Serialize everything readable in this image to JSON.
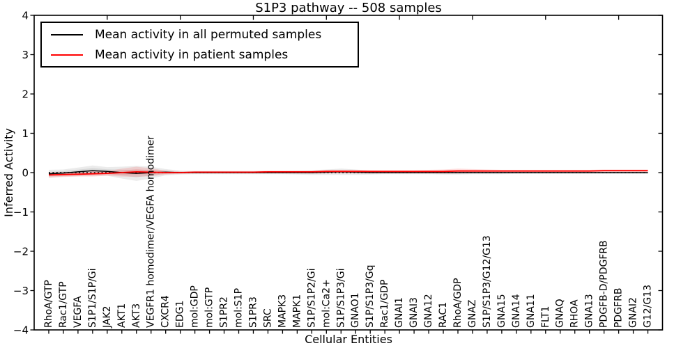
{
  "figure": {
    "title": "S1P3 pathway -- 508 samples",
    "xlabel": "Cellular Entities",
    "ylabel": "Inferred Activity",
    "legend": {
      "entries": [
        {
          "label": "Mean activity in all permuted samples",
          "color": "#000000"
        },
        {
          "label": "Mean activity in patient samples",
          "color": "#ff0000"
        }
      ]
    },
    "colors": {
      "background": "#ffffff",
      "axis": "#000000",
      "permuted_line": "#000000",
      "patient_line": "#ff0000",
      "permuted_band": "rgba(110,110,110,0.14)",
      "patient_band": "rgba(255,30,30,0.14)",
      "zero_line": "#000000"
    }
  },
  "chart_data": {
    "type": "line",
    "title": "S1P3 pathway -- 508 samples",
    "xlabel": "Cellular Entities",
    "ylabel": "Inferred Activity",
    "ylim": [
      -4,
      4
    ],
    "ytick_values": [
      4,
      3,
      2,
      1,
      0,
      -1,
      -2,
      -3,
      -4
    ],
    "ytick_labels": [
      "4",
      "3",
      "2",
      "1",
      "0",
      "−1",
      "−2",
      "−3",
      "−4"
    ],
    "grid": false,
    "legend_position": "upper left",
    "x_major_tick_categories": [
      4,
      9,
      14,
      19,
      24,
      29,
      34,
      39
    ],
    "zero_line": 0,
    "categories": [
      "RhoA/GTP",
      "Rac1/GTP",
      "VEGFA",
      "S1P1/S1P/Gi",
      "JAK2",
      "AKT1",
      "AKT3",
      "VEGFR1 homodimer/VEGFA homodimer",
      "CXCR4",
      "EDG1",
      "mol:GDP",
      "mol:GTP",
      "S1PR2",
      "mol:S1P",
      "S1PR3",
      "SRC",
      "MAPK3",
      "MAPK1",
      "S1P/S1P2/Gi",
      "mol:Ca2+",
      "S1P/S1P3/Gi",
      "GNAO1",
      "S1P/S1P3/Gq",
      "Rac1/GDP",
      "GNAI1",
      "GNAI3",
      "GNA12",
      "RAC1",
      "RhoA/GDP",
      "GNAZ",
      "S1P/S1P3/G12/G13",
      "GNA15",
      "GNA14",
      "GNA11",
      "FLT1",
      "GNAQ",
      "RHOA",
      "GNA13",
      "PDGFB-D/PDGFRB",
      "PDGFRB",
      "GNAI2",
      "G12/G13"
    ],
    "series": [
      {
        "name": "Mean activity in all permuted samples",
        "color": "#000000",
        "band_color": "rgba(110,110,110,0.14)",
        "values": [
          -0.03,
          -0.01,
          0.02,
          0.05,
          0.03,
          0.0,
          -0.02,
          0.0,
          0.01,
          0.0,
          0.0,
          0.0,
          0.0,
          0.0,
          0.0,
          0.0,
          0.0,
          0.0,
          0.0,
          0.01,
          0.02,
          0.01,
          0.0,
          0.0,
          0.0,
          0.0,
          0.0,
          0.0,
          0.0,
          0.0,
          0.0,
          0.0,
          0.0,
          0.0,
          0.0,
          0.0,
          0.0,
          0.0,
          0.0,
          0.0,
          0.0,
          0.0
        ],
        "band_halfwidth": [
          0.1,
          0.09,
          0.11,
          0.13,
          0.11,
          0.15,
          0.19,
          0.15,
          0.08,
          0.05,
          0.04,
          0.04,
          0.04,
          0.04,
          0.04,
          0.04,
          0.04,
          0.05,
          0.06,
          0.07,
          0.08,
          0.07,
          0.05,
          0.04,
          0.04,
          0.04,
          0.04,
          0.05,
          0.05,
          0.04,
          0.04,
          0.04,
          0.03,
          0.03,
          0.03,
          0.03,
          0.03,
          0.03,
          0.03,
          0.03,
          0.03,
          0.03
        ]
      },
      {
        "name": "Mean activity in patient samples",
        "color": "#ff0000",
        "band_color": "rgba(255,30,30,0.14)",
        "values": [
          -0.06,
          -0.05,
          -0.04,
          -0.03,
          -0.02,
          0.0,
          0.02,
          0.01,
          0.0,
          0.0,
          0.01,
          0.01,
          0.01,
          0.01,
          0.01,
          0.02,
          0.02,
          0.02,
          0.02,
          0.03,
          0.03,
          0.03,
          0.03,
          0.03,
          0.03,
          0.03,
          0.03,
          0.03,
          0.04,
          0.04,
          0.04,
          0.04,
          0.04,
          0.04,
          0.04,
          0.04,
          0.04,
          0.04,
          0.05,
          0.05,
          0.05,
          0.05
        ],
        "band_halfwidth": [
          0.07,
          0.06,
          0.06,
          0.07,
          0.06,
          0.1,
          0.13,
          0.1,
          0.05,
          0.03,
          0.03,
          0.03,
          0.03,
          0.03,
          0.03,
          0.03,
          0.03,
          0.03,
          0.03,
          0.04,
          0.04,
          0.04,
          0.03,
          0.03,
          0.03,
          0.03,
          0.04,
          0.05,
          0.06,
          0.05,
          0.04,
          0.03,
          0.03,
          0.03,
          0.03,
          0.03,
          0.03,
          0.03,
          0.03,
          0.03,
          0.03,
          0.03
        ]
      }
    ]
  }
}
